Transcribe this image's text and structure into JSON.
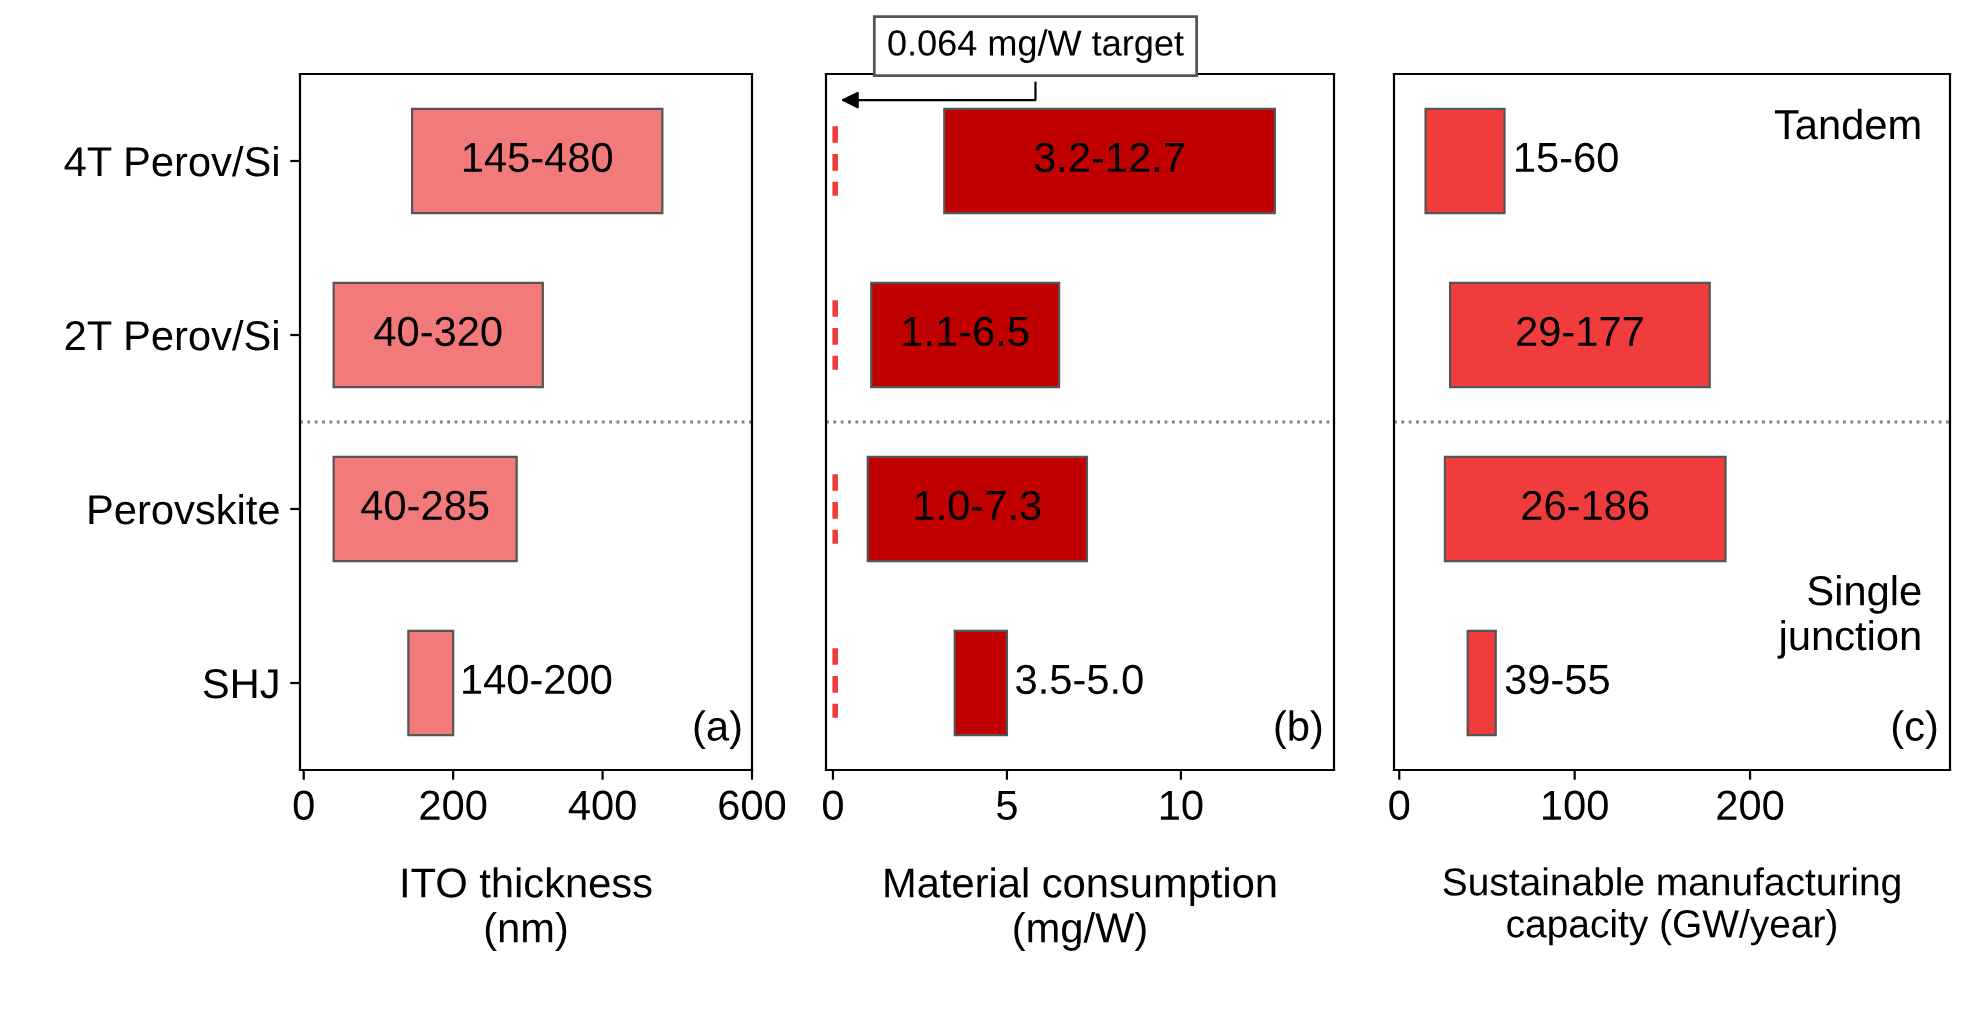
{
  "chart_data": [
    {
      "type": "bar",
      "orientation": "horizontal",
      "categories": [
        "4T Perov/Si",
        "2T Perov/Si",
        "Perovskite",
        "SHJ"
      ],
      "base": [
        145,
        40,
        40,
        140
      ],
      "values": [
        335,
        280,
        245,
        60
      ],
      "value_labels": [
        "145-480",
        "40-320",
        "40-285",
        "140-200"
      ],
      "color": "#f27a7a",
      "xlabel": "ITO thickness\n(nm)",
      "xlim": [
        -5,
        600
      ],
      "xticks": [
        0,
        200,
        400,
        600
      ],
      "annotations": [
        "(a)"
      ],
      "grid": false
    },
    {
      "type": "bar",
      "orientation": "horizontal",
      "categories": [
        null,
        null,
        null,
        null
      ],
      "base": [
        3.2,
        1.1,
        1.0,
        3.5
      ],
      "values": [
        9.5,
        5.4,
        6.3,
        1.5
      ],
      "value_labels": [
        "3.2-12.7",
        "1.1-6.5",
        "1.0-7.3",
        "3.5-5.0"
      ],
      "color": "#c00000",
      "xlabel": "Material consumption\n(mg/W)",
      "xlim": [
        -0.2,
        14.4
      ],
      "xticks": [
        0,
        5,
        10
      ],
      "ref_lines": [
        {
          "axis": "x",
          "value": 0.064,
          "label": "0.064 mg/W target",
          "color": "#f03c3c",
          "line_style": "dashed"
        }
      ],
      "annotations": [
        "(b)"
      ],
      "tick_labels": "x",
      "grid": false
    },
    {
      "type": "bar",
      "orientation": "horizontal",
      "categories": [
        null,
        null,
        null,
        null
      ],
      "base": [
        15,
        29,
        26,
        39
      ],
      "values": [
        45,
        148,
        160,
        16
      ],
      "value_labels": [
        "15-60",
        "29-177",
        "26-186",
        "39-55"
      ],
      "color": "#f03c3c",
      "xlabel": "Sustainable manufacturing\ncapacity (GW/year)",
      "xlim": [
        -3,
        314
      ],
      "xticks": [
        0,
        100,
        200
      ],
      "annotations": [
        "Tandem",
        "Single\njunction",
        "(c)"
      ],
      "tick_labels": "x",
      "grid": false
    }
  ]
}
